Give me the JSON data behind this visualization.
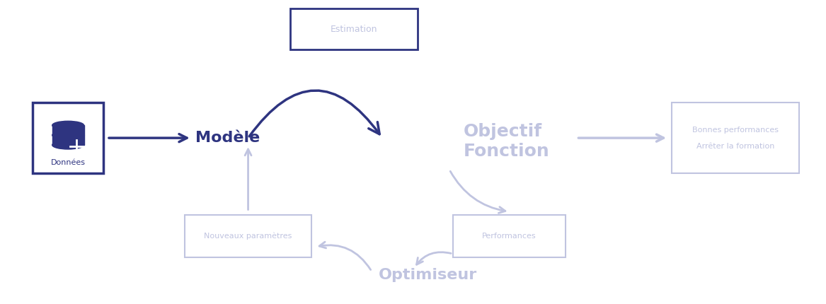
{
  "bg_color": "#ffffff",
  "dark_blue": "#2E3480",
  "light_lavender": "#C0C4E0",
  "box_edge_dark": "#2E3480",
  "box_edge_light": "#C0C4E0",
  "estimation_label": "Estimation",
  "donnees_label": "Données",
  "modele_label": "Modèle",
  "objectif_label": "Objectif\nFonction",
  "bonnes_label": "Bonnes performances\n\nArrêter la formation",
  "performances_label": "Performances",
  "nouveaux_label": "Nouveaux paramètres",
  "optimiseur_label": "Optimiseur"
}
